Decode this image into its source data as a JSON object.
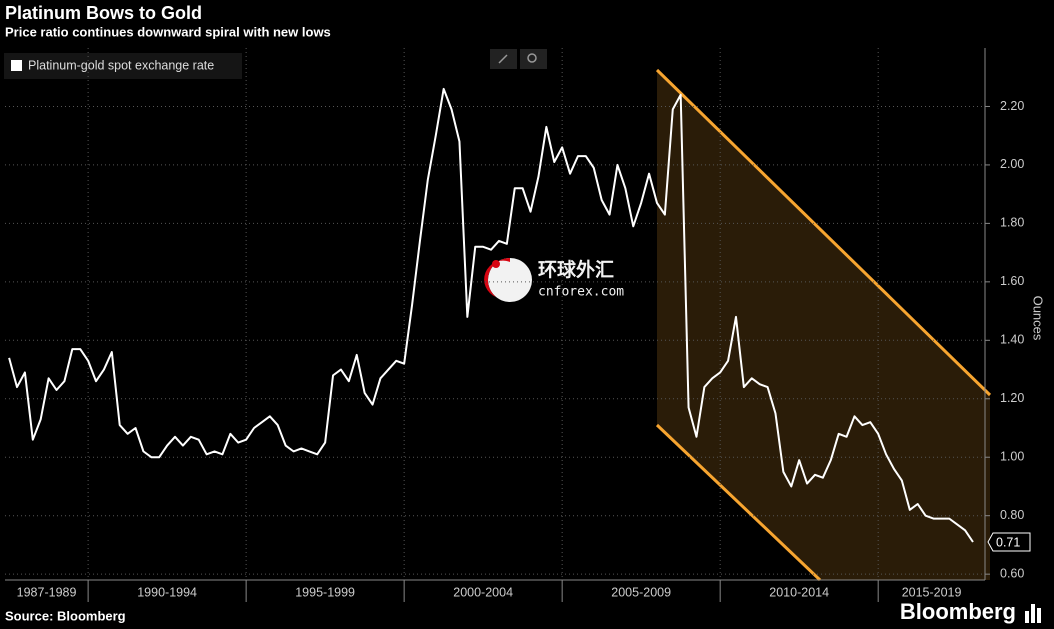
{
  "chart_data": {
    "type": "line",
    "title": "Platinum Bows to Gold",
    "subtitle": "Price ratio continues downward spiral with new lows",
    "y_label": "Ounces",
    "source": "Source: Bloomberg",
    "brand": "Bloomberg",
    "watermark": {
      "name": "环球外汇",
      "site": "cnforex.com"
    },
    "legend": "top-left",
    "grid": true,
    "xlim": [
      1987.37,
      2018.38
    ],
    "xticks": [
      {
        "value": 1987,
        "label": "1987-1989"
      },
      {
        "value": 1990,
        "label": "1990-1994"
      },
      {
        "value": 1995,
        "label": "1995-1999"
      },
      {
        "value": 2000,
        "label": "2000-2004"
      },
      {
        "value": 2005,
        "label": "2005-2009"
      },
      {
        "value": 2010,
        "label": "2010-2014"
      },
      {
        "value": 2015,
        "label": "2015-2019"
      }
    ],
    "ylim": [
      0.58,
      2.4
    ],
    "yticks": [
      {
        "value": 0.6,
        "label": "0.60"
      },
      {
        "value": 0.8,
        "label": "0.80"
      },
      {
        "value": 1.0,
        "label": "1.00"
      },
      {
        "value": 1.2,
        "label": "1.20"
      },
      {
        "value": 1.4,
        "label": "1.40"
      },
      {
        "value": 1.6,
        "label": "1.60"
      },
      {
        "value": 1.8,
        "label": "1.80"
      },
      {
        "value": 2.0,
        "label": "2.00"
      },
      {
        "value": 2.2,
        "label": "2.20"
      }
    ],
    "x": [
      1987.5,
      1987.75,
      1988,
      1988.25,
      1988.5,
      1988.75,
      1989,
      1989.25,
      1989.5,
      1989.75,
      1990,
      1990.25,
      1990.5,
      1990.75,
      1991,
      1991.25,
      1991.5,
      1991.75,
      1992,
      1992.25,
      1992.5,
      1992.75,
      1993,
      1993.25,
      1993.5,
      1993.75,
      1994,
      1994.25,
      1994.5,
      1994.75,
      1995,
      1995.25,
      1995.5,
      1995.75,
      1996,
      1996.25,
      1996.5,
      1996.75,
      1997,
      1997.25,
      1997.5,
      1997.75,
      1998,
      1998.25,
      1998.5,
      1998.75,
      1999,
      1999.25,
      1999.5,
      1999.75,
      2000,
      2000.25,
      2000.5,
      2000.75,
      2001,
      2001.25,
      2001.5,
      2001.75,
      2002,
      2002.25,
      2002.5,
      2002.75,
      2003,
      2003.25,
      2003.5,
      2003.75,
      2004,
      2004.25,
      2004.5,
      2004.75,
      2005,
      2005.25,
      2005.5,
      2005.75,
      2006,
      2006.25,
      2006.5,
      2006.75,
      2007,
      2007.25,
      2007.5,
      2007.75,
      2008,
      2008.25,
      2008.5,
      2008.75,
      2009,
      2009.25,
      2009.5,
      2009.75,
      2010,
      2010.25,
      2010.5,
      2010.75,
      2011,
      2011.25,
      2011.5,
      2011.75,
      2012,
      2012.25,
      2012.5,
      2012.75,
      2013,
      2013.25,
      2013.5,
      2013.75,
      2014,
      2014.25,
      2014.5,
      2014.75,
      2015,
      2015.25,
      2015.5,
      2015.75,
      2016,
      2016.25,
      2016.5,
      2016.75,
      2017,
      2017.25,
      2017.5,
      2017.75,
      2018
    ],
    "series": [
      {
        "name": "Platinum-gold spot exchange rate",
        "color": "#ffffff",
        "values": [
          1.34,
          1.24,
          1.29,
          1.06,
          1.13,
          1.27,
          1.23,
          1.26,
          1.37,
          1.37,
          1.33,
          1.26,
          1.3,
          1.36,
          1.11,
          1.08,
          1.1,
          1.02,
          1.0,
          1.0,
          1.04,
          1.07,
          1.04,
          1.07,
          1.06,
          1.01,
          1.02,
          1.01,
          1.08,
          1.05,
          1.06,
          1.1,
          1.12,
          1.14,
          1.11,
          1.04,
          1.02,
          1.03,
          1.02,
          1.01,
          1.05,
          1.28,
          1.3,
          1.26,
          1.35,
          1.22,
          1.18,
          1.27,
          1.3,
          1.33,
          1.32,
          1.52,
          1.74,
          1.95,
          2.1,
          2.26,
          2.19,
          2.08,
          1.48,
          1.72,
          1.72,
          1.71,
          1.74,
          1.73,
          1.92,
          1.92,
          1.84,
          1.96,
          2.13,
          2.01,
          2.06,
          1.97,
          2.03,
          2.03,
          1.99,
          1.88,
          1.83,
          2.0,
          1.92,
          1.79,
          1.87,
          1.97,
          1.87,
          1.83,
          2.19,
          2.24,
          1.17,
          1.07,
          1.24,
          1.27,
          1.29,
          1.33,
          1.48,
          1.24,
          1.27,
          1.25,
          1.24,
          1.15,
          0.95,
          0.9,
          0.99,
          0.91,
          0.94,
          0.93,
          0.99,
          1.08,
          1.07,
          1.14,
          1.11,
          1.12,
          1.08,
          1.01,
          0.96,
          0.92,
          0.82,
          0.84,
          0.8,
          0.79,
          0.79,
          0.79,
          0.77,
          0.75,
          0.71
        ]
      }
    ]
  }
}
